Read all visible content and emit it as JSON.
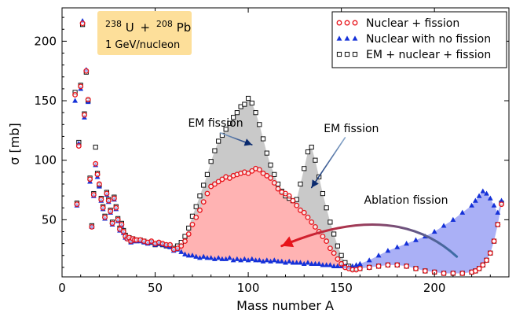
{
  "chart_data": {
    "type": "scatter",
    "xlabel": "Mass number A",
    "ylabel": "σ [mb]",
    "xlim": [
      0,
      240
    ],
    "ylim": [
      2,
      228
    ],
    "xticks": [
      0,
      50,
      100,
      150,
      200
    ],
    "yticks": [
      50,
      100,
      150,
      200
    ],
    "reaction_box": {
      "projectile_mass": "238",
      "projectile": "U",
      "plus": "+",
      "target_mass": "208",
      "target": "Pb",
      "energy": "1 GeV/nucleon",
      "background": "#fddf9a"
    },
    "legend_position": "top-right",
    "series": [
      {
        "name": "Nuclear + fission",
        "marker": "circle",
        "color": "#e8141b",
        "x": [
          7,
          8,
          9,
          10,
          11,
          12,
          13,
          14,
          15,
          16,
          17,
          18,
          19,
          20,
          21,
          22,
          23,
          24,
          25,
          26,
          27,
          28,
          29,
          30,
          31,
          32,
          33,
          34,
          35,
          36,
          37,
          38,
          39,
          40,
          42,
          44,
          46,
          48,
          50,
          52,
          54,
          56,
          58,
          60,
          62,
          64,
          66,
          68,
          70,
          72,
          74,
          76,
          78,
          80,
          82,
          84,
          86,
          88,
          90,
          92,
          94,
          96,
          98,
          100,
          102,
          104,
          106,
          108,
          110,
          112,
          114,
          116,
          118,
          120,
          122,
          124,
          126,
          128,
          130,
          132,
          134,
          136,
          138,
          140,
          142,
          144,
          146,
          148,
          150,
          152,
          154,
          156,
          158,
          160,
          165,
          170,
          175,
          180,
          185,
          190,
          195,
          200,
          205,
          210,
          215,
          220,
          222,
          224,
          226,
          228,
          230,
          232,
          234,
          236
        ],
        "y": [
          155,
          63,
          112,
          162,
          215,
          138,
          175,
          151,
          84,
          44,
          71,
          97,
          88,
          80,
          67,
          60,
          52,
          72,
          66,
          57,
          47,
          68,
          60,
          50,
          42,
          46,
          40,
          36,
          34,
          35,
          32,
          34,
          33,
          33,
          33,
          32,
          31,
          32,
          30,
          31,
          30,
          29,
          29,
          25,
          26,
          28,
          32,
          38,
          46,
          52,
          58,
          65,
          72,
          78,
          80,
          82,
          84,
          86,
          85,
          87,
          88,
          89,
          90,
          89,
          91,
          93,
          92,
          89,
          87,
          85,
          81,
          76,
          73,
          72,
          70,
          66,
          62,
          58,
          56,
          52,
          48,
          44,
          40,
          36,
          32,
          26,
          22,
          17,
          13,
          10,
          9,
          8,
          8,
          9,
          10,
          11,
          12,
          12,
          11,
          9,
          7,
          6,
          5,
          5,
          5,
          6,
          7,
          9,
          12,
          16,
          22,
          32,
          46,
          63
        ]
      },
      {
        "name": "Nuclear with no fission",
        "marker": "triangle",
        "color": "#1531d8",
        "x": [
          7,
          8,
          9,
          10,
          11,
          12,
          13,
          14,
          15,
          16,
          17,
          18,
          19,
          20,
          21,
          22,
          23,
          24,
          25,
          26,
          27,
          28,
          29,
          30,
          31,
          32,
          33,
          34,
          35,
          36,
          37,
          38,
          39,
          40,
          42,
          44,
          46,
          48,
          50,
          52,
          54,
          56,
          58,
          60,
          62,
          64,
          66,
          68,
          70,
          72,
          74,
          76,
          78,
          80,
          82,
          84,
          86,
          88,
          90,
          92,
          94,
          96,
          98,
          100,
          102,
          104,
          106,
          108,
          110,
          112,
          114,
          116,
          118,
          120,
          122,
          124,
          126,
          128,
          130,
          132,
          134,
          136,
          138,
          140,
          142,
          144,
          146,
          148,
          150,
          152,
          154,
          156,
          158,
          160,
          165,
          170,
          175,
          180,
          185,
          190,
          195,
          200,
          205,
          210,
          215,
          220,
          222,
          224,
          226,
          228,
          230,
          232,
          234,
          236
        ],
        "y": [
          150,
          62,
          114,
          160,
          217,
          136,
          176,
          149,
          82,
          44,
          70,
          96,
          86,
          78,
          66,
          59,
          51,
          71,
          65,
          56,
          46,
          67,
          59,
          49,
          41,
          45,
          39,
          35,
          34,
          34,
          31,
          33,
          32,
          32,
          32,
          31,
          30,
          31,
          29,
          30,
          29,
          28,
          27,
          24,
          25,
          23,
          21,
          20,
          20,
          19,
          18,
          19,
          18,
          18,
          17,
          18,
          17,
          17,
          18,
          16,
          17,
          16,
          17,
          16,
          17,
          16,
          16,
          15,
          16,
          15,
          16,
          15,
          15,
          14,
          15,
          14,
          14,
          14,
          13,
          14,
          13,
          13,
          13,
          12,
          12,
          12,
          11,
          11,
          11,
          11,
          10,
          11,
          12,
          13,
          16,
          20,
          24,
          27,
          30,
          33,
          36,
          40,
          45,
          50,
          56,
          62,
          66,
          70,
          74,
          72,
          68,
          62,
          56,
          66
        ]
      },
      {
        "name": "EM + nuclear + fission",
        "marker": "square",
        "color": "#111111",
        "x": [
          7,
          8,
          9,
          10,
          11,
          12,
          13,
          14,
          15,
          16,
          17,
          18,
          19,
          20,
          21,
          22,
          23,
          24,
          25,
          26,
          27,
          28,
          29,
          30,
          31,
          32,
          33,
          34,
          35,
          36,
          37,
          38,
          39,
          40,
          42,
          44,
          46,
          48,
          50,
          52,
          54,
          56,
          58,
          60,
          62,
          64,
          66,
          68,
          70,
          72,
          74,
          76,
          78,
          80,
          82,
          84,
          86,
          88,
          90,
          92,
          94,
          96,
          98,
          100,
          102,
          104,
          106,
          108,
          110,
          112,
          114,
          116,
          118,
          120,
          122,
          124,
          126,
          128,
          130,
          132,
          134,
          136,
          138,
          140,
          142,
          144,
          146,
          148,
          150,
          152,
          154,
          156,
          158,
          160,
          165,
          170,
          175,
          180,
          185,
          190,
          195,
          200,
          205,
          210,
          215,
          220,
          222,
          224,
          226,
          228,
          230,
          232,
          234,
          236
        ],
        "y": [
          157,
          64,
          115,
          163,
          214,
          139,
          174,
          150,
          85,
          45,
          72,
          111,
          89,
          79,
          68,
          61,
          53,
          73,
          67,
          58,
          48,
          69,
          61,
          51,
          43,
          47,
          41,
          37,
          35,
          35,
          32,
          34,
          33,
          33,
          33,
          32,
          31,
          31,
          29,
          30,
          29,
          28,
          28,
          26,
          28,
          31,
          36,
          43,
          53,
          61,
          70,
          79,
          88,
          99,
          108,
          116,
          121,
          126,
          131,
          136,
          140,
          145,
          147,
          152,
          148,
          140,
          130,
          118,
          106,
          96,
          88,
          80,
          74,
          70,
          68,
          66,
          67,
          80,
          93,
          107,
          111,
          100,
          86,
          72,
          60,
          48,
          38,
          28,
          20,
          14,
          11,
          9,
          9,
          9,
          10,
          11,
          12,
          12,
          11,
          9,
          7,
          6,
          5,
          5,
          5,
          6,
          7,
          9,
          12,
          16,
          22,
          32,
          46,
          64
        ]
      }
    ],
    "annotations": [
      {
        "text": "EM fission",
        "at": [
          102,
          113
        ],
        "from": [
          85,
          123
        ]
      },
      {
        "text": "EM fission",
        "at": [
          134,
          77
        ],
        "from": [
          152,
          119
        ]
      },
      {
        "text": "Ablation fission",
        "at": [
          118,
          28
        ],
        "from": [
          212,
          19
        ]
      }
    ]
  }
}
